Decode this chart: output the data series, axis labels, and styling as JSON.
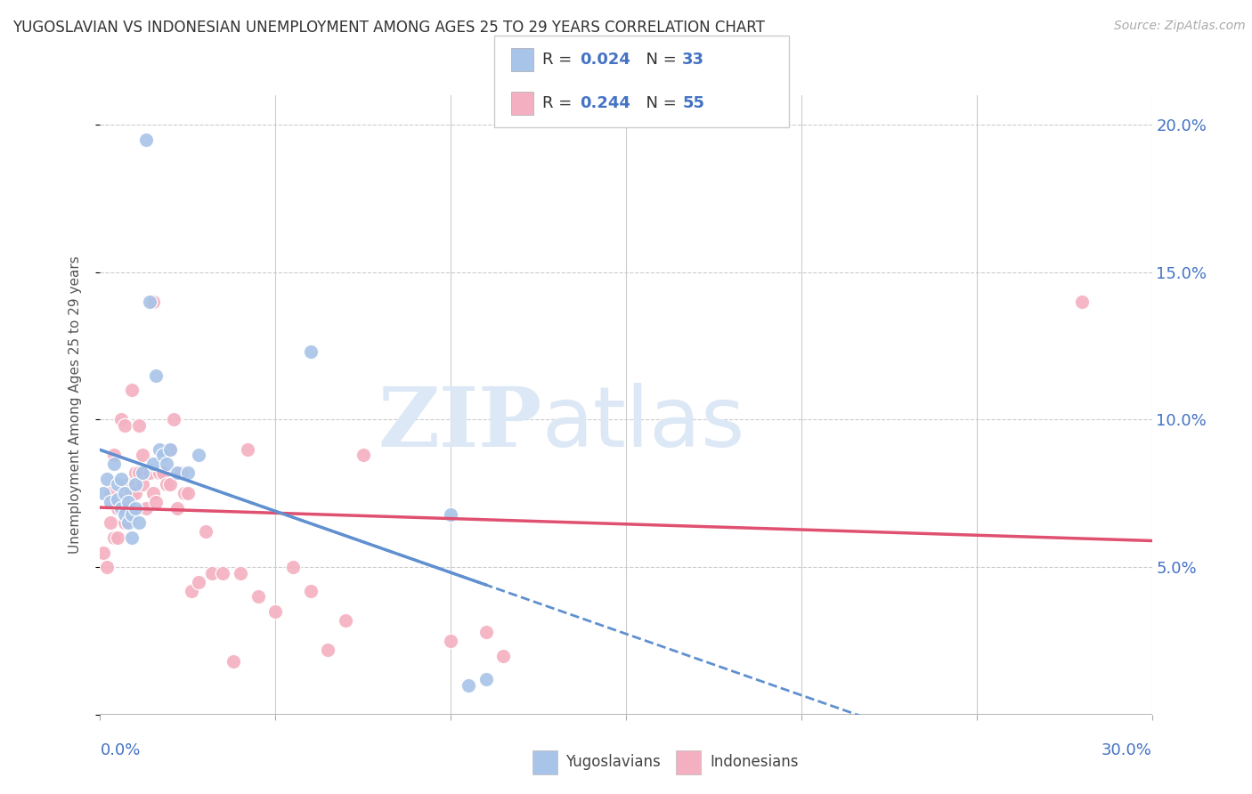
{
  "title": "YUGOSLAVIAN VS INDONESIAN UNEMPLOYMENT AMONG AGES 25 TO 29 YEARS CORRELATION CHART",
  "source": "Source: ZipAtlas.com",
  "ylabel": "Unemployment Among Ages 25 to 29 years",
  "color_yugoslavian": "#a8c4e8",
  "color_indonesian": "#f4b0c0",
  "color_line_yugoslavian": "#6090d0",
  "color_line_indonesian": "#e05070",
  "color_text_blue": "#4472c4",
  "watermark_zip": "ZIP",
  "watermark_atlas": "atlas",
  "watermark_color": "#dce8f5",
  "r_yug": "0.024",
  "n_yug": "33",
  "r_ind": "0.244",
  "n_ind": "55",
  "legend_label_yug": "Yugoslavians",
  "legend_label_ind": "Indonesians",
  "xmin": 0.0,
  "xmax": 0.3,
  "ymin": 0.0,
  "ymax": 0.21,
  "yugoslavian_x": [
    0.001,
    0.002,
    0.003,
    0.004,
    0.005,
    0.005,
    0.006,
    0.006,
    0.007,
    0.007,
    0.008,
    0.008,
    0.009,
    0.009,
    0.01,
    0.01,
    0.011,
    0.012,
    0.013,
    0.014,
    0.015,
    0.016,
    0.017,
    0.018,
    0.019,
    0.02,
    0.022,
    0.025,
    0.028,
    0.06,
    0.1,
    0.105,
    0.11
  ],
  "yugoslavian_y": [
    0.075,
    0.08,
    0.072,
    0.085,
    0.073,
    0.078,
    0.07,
    0.08,
    0.068,
    0.075,
    0.065,
    0.072,
    0.06,
    0.068,
    0.07,
    0.078,
    0.065,
    0.082,
    0.195,
    0.14,
    0.085,
    0.115,
    0.09,
    0.088,
    0.085,
    0.09,
    0.082,
    0.082,
    0.088,
    0.123,
    0.068,
    0.01,
    0.012
  ],
  "indonesian_x": [
    0.001,
    0.002,
    0.003,
    0.003,
    0.004,
    0.004,
    0.005,
    0.005,
    0.006,
    0.007,
    0.007,
    0.008,
    0.008,
    0.009,
    0.009,
    0.01,
    0.01,
    0.011,
    0.011,
    0.012,
    0.012,
    0.013,
    0.014,
    0.015,
    0.015,
    0.016,
    0.017,
    0.018,
    0.019,
    0.02,
    0.02,
    0.021,
    0.022,
    0.023,
    0.024,
    0.025,
    0.026,
    0.028,
    0.03,
    0.032,
    0.035,
    0.038,
    0.04,
    0.042,
    0.045,
    0.05,
    0.055,
    0.06,
    0.065,
    0.07,
    0.075,
    0.1,
    0.11,
    0.115,
    0.28
  ],
  "indonesian_y": [
    0.055,
    0.05,
    0.065,
    0.075,
    0.06,
    0.088,
    0.07,
    0.06,
    0.1,
    0.065,
    0.098,
    0.078,
    0.072,
    0.11,
    0.075,
    0.082,
    0.075,
    0.098,
    0.082,
    0.088,
    0.078,
    0.07,
    0.082,
    0.075,
    0.14,
    0.072,
    0.082,
    0.082,
    0.078,
    0.078,
    0.09,
    0.1,
    0.07,
    0.082,
    0.075,
    0.075,
    0.042,
    0.045,
    0.062,
    0.048,
    0.048,
    0.018,
    0.048,
    0.09,
    0.04,
    0.035,
    0.05,
    0.042,
    0.022,
    0.032,
    0.088,
    0.025,
    0.028,
    0.02,
    0.14
  ]
}
